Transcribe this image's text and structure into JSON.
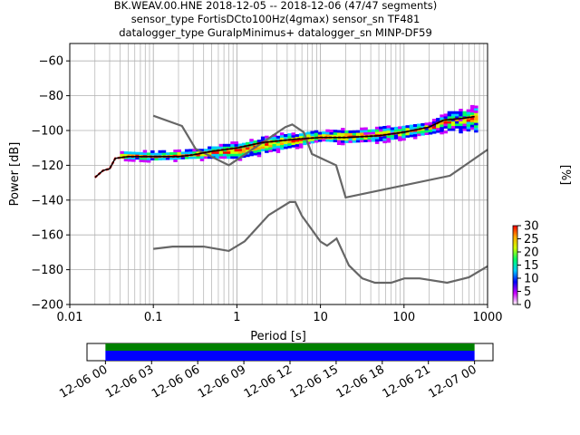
{
  "figure": {
    "title_lines": [
      "BK.WEAV.00.HNE   2018-12-05 -- 2018-12-06  (47/47 segments)",
      "sensor_type FortisDCto100Hz(4gmax) sensor_sn TF481",
      "datalogger_type GuralpMinimus+ datalogger_sn MINP-DF59"
    ]
  },
  "chart_data": [
    {
      "type": "heatmap",
      "subtype": "probabilistic power spectral density (PPSD)",
      "xlabel": "Period [s]",
      "ylabel": "Power [dB]",
      "x_scale": "log",
      "xlim": [
        0.01,
        1000
      ],
      "ylim": [
        -200,
        -50
      ],
      "x_ticks": [
        0.01,
        0.1,
        1,
        10,
        100,
        1000
      ],
      "x_tick_labels": [
        "0.01",
        "0.1",
        "1",
        "10",
        "100",
        "1000"
      ],
      "y_ticks": [
        -200,
        -180,
        -160,
        -140,
        -120,
        -100,
        -80,
        -60
      ],
      "y_tick_labels": [
        "−200",
        "−180",
        "−160",
        "−140",
        "−120",
        "−100",
        "−80",
        "−60"
      ],
      "grid": true,
      "colorbar": {
        "label": "[%]",
        "range": [
          0,
          30
        ],
        "ticks": [
          0,
          5,
          10,
          15,
          20,
          25,
          30
        ],
        "tick_labels": [
          "0",
          "5",
          "10",
          "15",
          "20",
          "25",
          "30"
        ],
        "colors": [
          "#ffffff",
          "#cc00ff",
          "#0000ff",
          "#00ccff",
          "#00ff66",
          "#ccff00",
          "#ffaa00",
          "#ff0000"
        ]
      },
      "colors": {
        "noise_model": "#666666",
        "mean": "#000000",
        "mode": "#ff0000",
        "grid": "#b0b0b0",
        "coverage_green": "#008000",
        "coverage_blue": "#0000ff"
      },
      "mean_curve": {
        "period": [
          0.02,
          0.025,
          0.03,
          0.035,
          0.05,
          0.1,
          0.2,
          0.3,
          0.5,
          1,
          2,
          5,
          10,
          20,
          50,
          100,
          200,
          300,
          500,
          700
        ],
        "power": [
          -127,
          -123,
          -122,
          -116,
          -115,
          -115,
          -115,
          -114,
          -112,
          -110,
          -107,
          -105,
          -104,
          -104,
          -103,
          -101,
          -98,
          -94,
          -93,
          -92
        ]
      },
      "density_band": {
        "period": [
          0.04,
          0.1,
          0.3,
          0.5,
          1,
          2,
          5,
          10,
          20,
          50,
          100,
          200,
          300,
          500,
          700
        ],
        "upper": [
          -114,
          -114,
          -113,
          -111,
          -108,
          -105,
          -103,
          -102,
          -101,
          -100,
          -99,
          -97,
          -92,
          -89,
          -86
        ],
        "lower": [
          -116,
          -117,
          -116,
          -116,
          -116,
          -113,
          -109,
          -106,
          -107,
          -106,
          -104,
          -102,
          -100,
          -100,
          -101
        ]
      },
      "noise_models": {
        "high": {
          "period": [
            0.1,
            0.22,
            0.32,
            0.8,
            3.8,
            4.6,
            6.3,
            7.9,
            15.4,
            20,
            354.8,
            1000
          ],
          "power": [
            -91.5,
            -97.4,
            -110.5,
            -120,
            -98,
            -96.5,
            -101,
            -113.5,
            -120,
            -138.5,
            -126,
            -111
          ]
        },
        "low": {
          "period": [
            0.1,
            0.17,
            0.4,
            0.8,
            1.24,
            2.4,
            4.3,
            5,
            6,
            10,
            12,
            15.6,
            21.9,
            31.6,
            45,
            70,
            101,
            154,
            328,
            600,
            1000
          ],
          "power": [
            -168,
            -166.7,
            -166.7,
            -169.2,
            -163.7,
            -148.6,
            -141.1,
            -141.1,
            -149,
            -163.8,
            -166.2,
            -162.1,
            -177.5,
            -185,
            -187.5,
            -187.5,
            -185,
            -185,
            -187.5,
            -184.4,
            -178
          ]
        }
      }
    },
    {
      "type": "bar",
      "subtype": "data coverage timeline",
      "x_tick_labels": [
        "12-06 00",
        "12-06 03",
        "12-06 06",
        "12-06 09",
        "12-06 12",
        "12-06 15",
        "12-06 18",
        "12-06 21",
        "12-07 00"
      ],
      "x_tick_hours": [
        0,
        3,
        6,
        9,
        12,
        15,
        18,
        21,
        24
      ],
      "xlim_hours": [
        -1.2,
        25.2
      ],
      "bars": [
        {
          "start_hours": 0,
          "end_hours": 24,
          "color": "#008000",
          "row": "upper"
        },
        {
          "start_hours": 0,
          "end_hours": 24,
          "color": "#0000ff",
          "row": "lower"
        }
      ]
    }
  ]
}
